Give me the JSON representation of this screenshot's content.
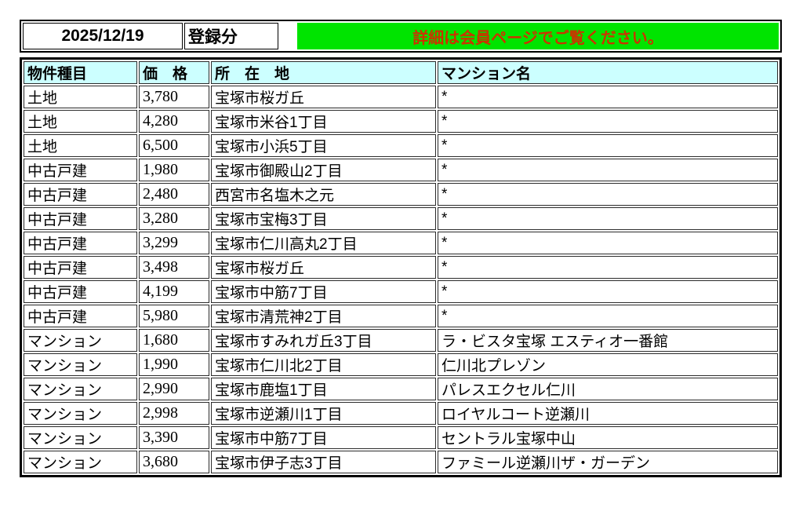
{
  "header": {
    "date": "2025/12/19",
    "label": "登録分",
    "banner": "詳細は会員ページでご覧ください。"
  },
  "colors": {
    "banner_bg": "#00e400",
    "banner_text": "#cc3300",
    "table_header_bg": "#ccffff"
  },
  "table": {
    "columns": [
      "物件種目",
      "価　格",
      "所　在　地",
      "マンション名"
    ],
    "rows": [
      [
        "土地",
        "3,780",
        "宝塚市桜ガ丘",
        "*"
      ],
      [
        "土地",
        "4,280",
        "宝塚市米谷1丁目",
        "*"
      ],
      [
        "土地",
        "6,500",
        "宝塚市小浜5丁目",
        "*"
      ],
      [
        "中古戸建",
        "1,980",
        "宝塚市御殿山2丁目",
        "*"
      ],
      [
        "中古戸建",
        "2,480",
        "西宮市名塩木之元",
        "*"
      ],
      [
        "中古戸建",
        "3,280",
        "宝塚市宝梅3丁目",
        "*"
      ],
      [
        "中古戸建",
        "3,299",
        "宝塚市仁川高丸2丁目",
        "*"
      ],
      [
        "中古戸建",
        "3,498",
        "宝塚市桜ガ丘",
        "*"
      ],
      [
        "中古戸建",
        "4,199",
        "宝塚市中筋7丁目",
        "*"
      ],
      [
        "中古戸建",
        "5,980",
        "宝塚市清荒神2丁目",
        "*"
      ],
      [
        "マンション",
        "1,680",
        "宝塚市すみれガ丘3丁目",
        "ラ・ビスタ宝塚 エスティオ一番館"
      ],
      [
        "マンション",
        "1,990",
        "宝塚市仁川北2丁目",
        "仁川北プレゾン"
      ],
      [
        "マンション",
        "2,990",
        "宝塚市鹿塩1丁目",
        "パレスエクセル仁川"
      ],
      [
        "マンション",
        "2,998",
        "宝塚市逆瀬川1丁目",
        "ロイヤルコート逆瀬川"
      ],
      [
        "マンション",
        "3,390",
        "宝塚市中筋7丁目",
        "セントラル宝塚中山"
      ],
      [
        "マンション",
        "3,680",
        "宝塚市伊子志3丁目",
        "ファミール逆瀬川ザ・ガーデン"
      ]
    ]
  }
}
